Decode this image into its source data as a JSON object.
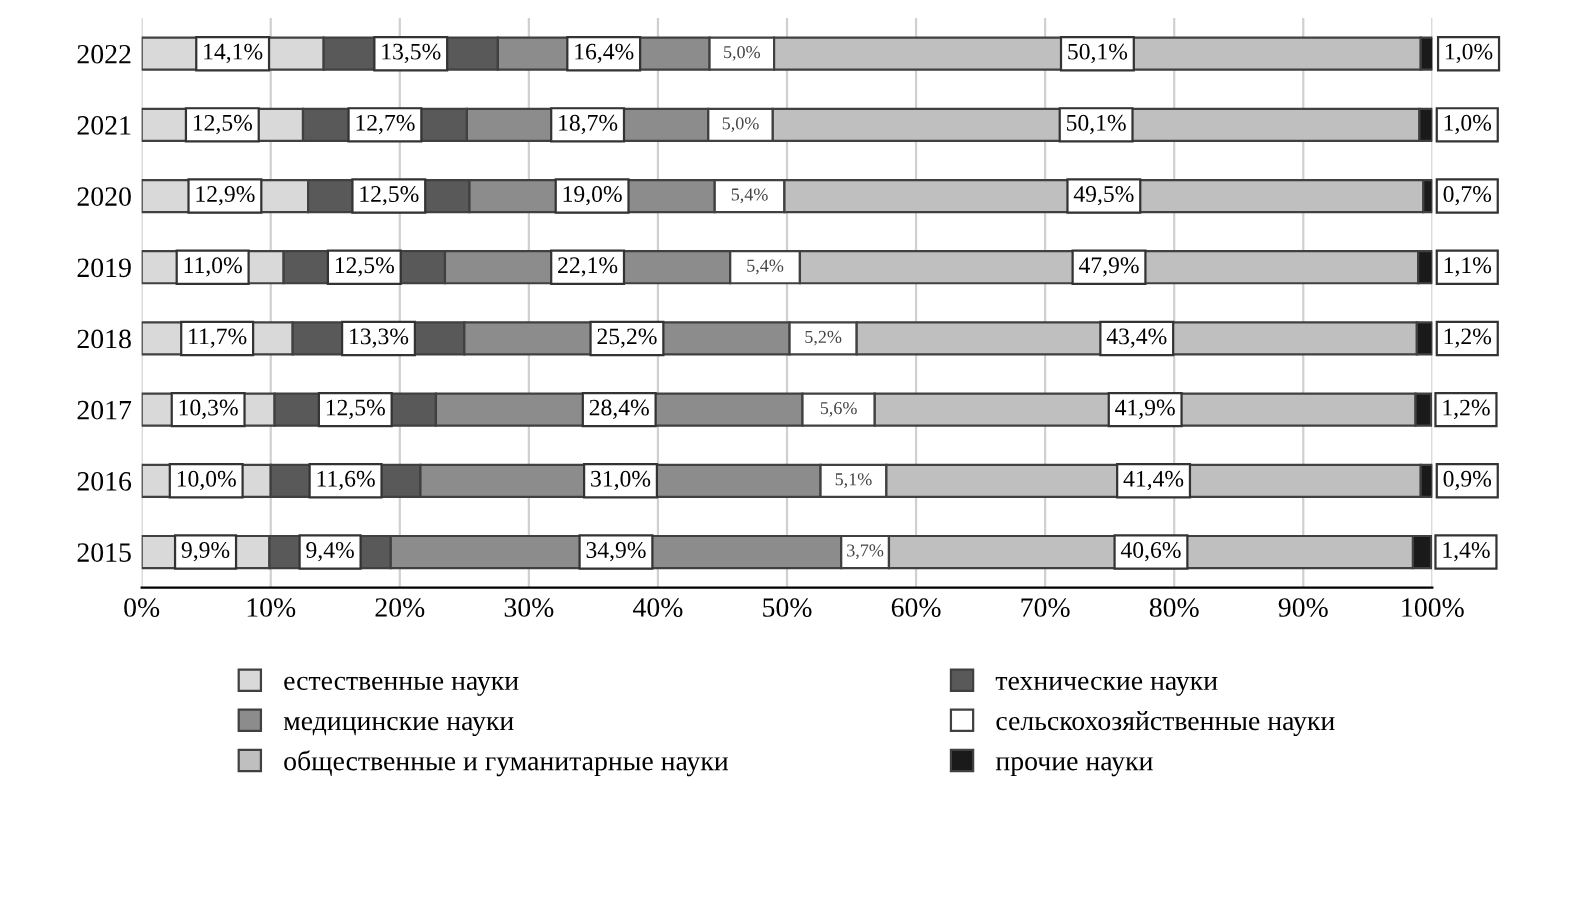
{
  "chart_data": {
    "type": "bar",
    "orientation": "horizontal",
    "stacked": true,
    "categories": [
      "2022",
      "2021",
      "2020",
      "2019",
      "2018",
      "2017",
      "2016",
      "2015"
    ],
    "series": [
      {
        "name": "естественные науки",
        "color": "#d9d9d9",
        "values": [
          14.1,
          12.5,
          12.9,
          11.0,
          11.7,
          10.3,
          10.0,
          9.9
        ],
        "value_labels": [
          "14,1%",
          "12,5%",
          "12,9%",
          "11,0%",
          "11,7%",
          "10,3%",
          "10,0%",
          "9,9%"
        ]
      },
      {
        "name": "технические науки",
        "color": "#595959",
        "values": [
          13.5,
          12.7,
          12.5,
          12.5,
          13.3,
          12.5,
          11.6,
          9.4
        ],
        "value_labels": [
          "13,5%",
          "12,7%",
          "12,5%",
          "12,5%",
          "13,3%",
          "12,5%",
          "11,6%",
          "9,4%"
        ]
      },
      {
        "name": "медицинские науки",
        "color": "#8c8c8c",
        "values": [
          16.4,
          18.7,
          19.0,
          22.1,
          25.2,
          28.4,
          31.0,
          34.9
        ],
        "value_labels": [
          "16,4%",
          "18,7%",
          "19,0%",
          "22,1%",
          "25,2%",
          "28,4%",
          "31,0%",
          "34,9%"
        ]
      },
      {
        "name": "сельскохозяйственные науки",
        "color": "#ffffff",
        "values": [
          5.0,
          5.0,
          5.4,
          5.4,
          5.2,
          5.6,
          5.1,
          3.7
        ],
        "value_labels": [
          "5,0%",
          "5,0%",
          "5,4%",
          "5,4%",
          "5,2%",
          "5,6%",
          "5,1%",
          "3,7%"
        ]
      },
      {
        "name": "общественные и гуманитарные науки",
        "color": "#bfbfbf",
        "values": [
          50.1,
          50.1,
          49.5,
          47.9,
          43.4,
          41.9,
          41.4,
          40.6
        ],
        "value_labels": [
          "50,1%",
          "50,1%",
          "49,5%",
          "47,9%",
          "43,4%",
          "41,9%",
          "41,4%",
          "40,6%"
        ]
      },
      {
        "name": "прочие науки",
        "color": "#1a1a1a",
        "values": [
          1.0,
          1.0,
          0.7,
          1.1,
          1.2,
          1.2,
          0.9,
          1.4
        ],
        "value_labels": [
          "1,0%",
          "1,0%",
          "0,7%",
          "1,1%",
          "1,2%",
          "1,2%",
          "0,9%",
          "1,4%"
        ]
      }
    ],
    "xlim": [
      0,
      100
    ],
    "xticks": [
      {
        "value": 0,
        "label": "0%"
      },
      {
        "value": 10,
        "label": "10%"
      },
      {
        "value": 20,
        "label": "20%"
      },
      {
        "value": 30,
        "label": "30%"
      },
      {
        "value": 40,
        "label": "40%"
      },
      {
        "value": 50,
        "label": "50%"
      },
      {
        "value": 60,
        "label": "60%"
      },
      {
        "value": 70,
        "label": "70%"
      },
      {
        "value": 80,
        "label": "80%"
      },
      {
        "value": 90,
        "label": "90%"
      },
      {
        "value": 100,
        "label": "100%"
      }
    ],
    "grid": "x",
    "legend": "bottom"
  }
}
